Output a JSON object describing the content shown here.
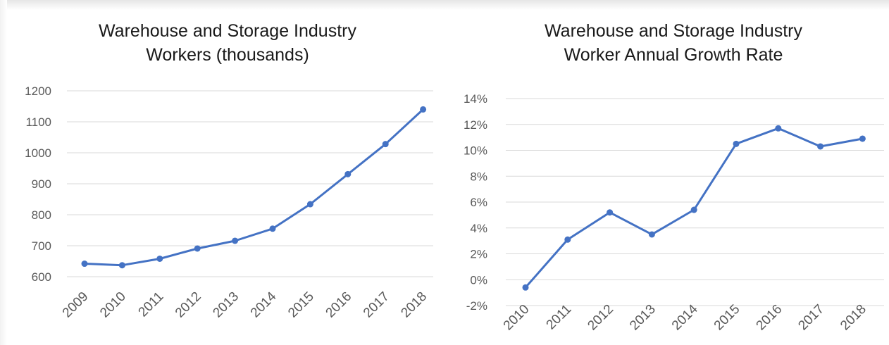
{
  "colors": {
    "series": "#4472c4",
    "grid": "#d9d9d9",
    "text": "#595959",
    "title": "#1a1a1a"
  },
  "chart_data": [
    {
      "type": "line",
      "title_lines": [
        "Warehouse and Storage Industry",
        "Workers (thousands)"
      ],
      "xlabel": "",
      "ylabel": "",
      "x": [
        "2009",
        "2010",
        "2011",
        "2012",
        "2013",
        "2014",
        "2015",
        "2016",
        "2017",
        "2018"
      ],
      "values": [
        642,
        637,
        658,
        691,
        716,
        755,
        834,
        931,
        1028,
        1140
      ],
      "ylim": [
        600,
        1200
      ],
      "yticks": [
        "600",
        "700",
        "800",
        "900",
        "1000",
        "1100",
        "1200"
      ],
      "grid": true,
      "legend": "none"
    },
    {
      "type": "line",
      "title_lines": [
        "Warehouse and Storage Industry",
        "Worker Annual Growth Rate"
      ],
      "xlabel": "",
      "ylabel": "",
      "x": [
        "2010",
        "2011",
        "2012",
        "2013",
        "2014",
        "2015",
        "2016",
        "2017",
        "2018"
      ],
      "values": [
        -0.6,
        3.1,
        5.2,
        3.5,
        5.4,
        10.5,
        11.7,
        10.3,
        10.9
      ],
      "ylim": [
        -2,
        14
      ],
      "yticks": [
        "-2%",
        "0%",
        "2%",
        "4%",
        "6%",
        "8%",
        "10%",
        "12%",
        "14%"
      ],
      "grid": true,
      "legend": "none"
    }
  ]
}
